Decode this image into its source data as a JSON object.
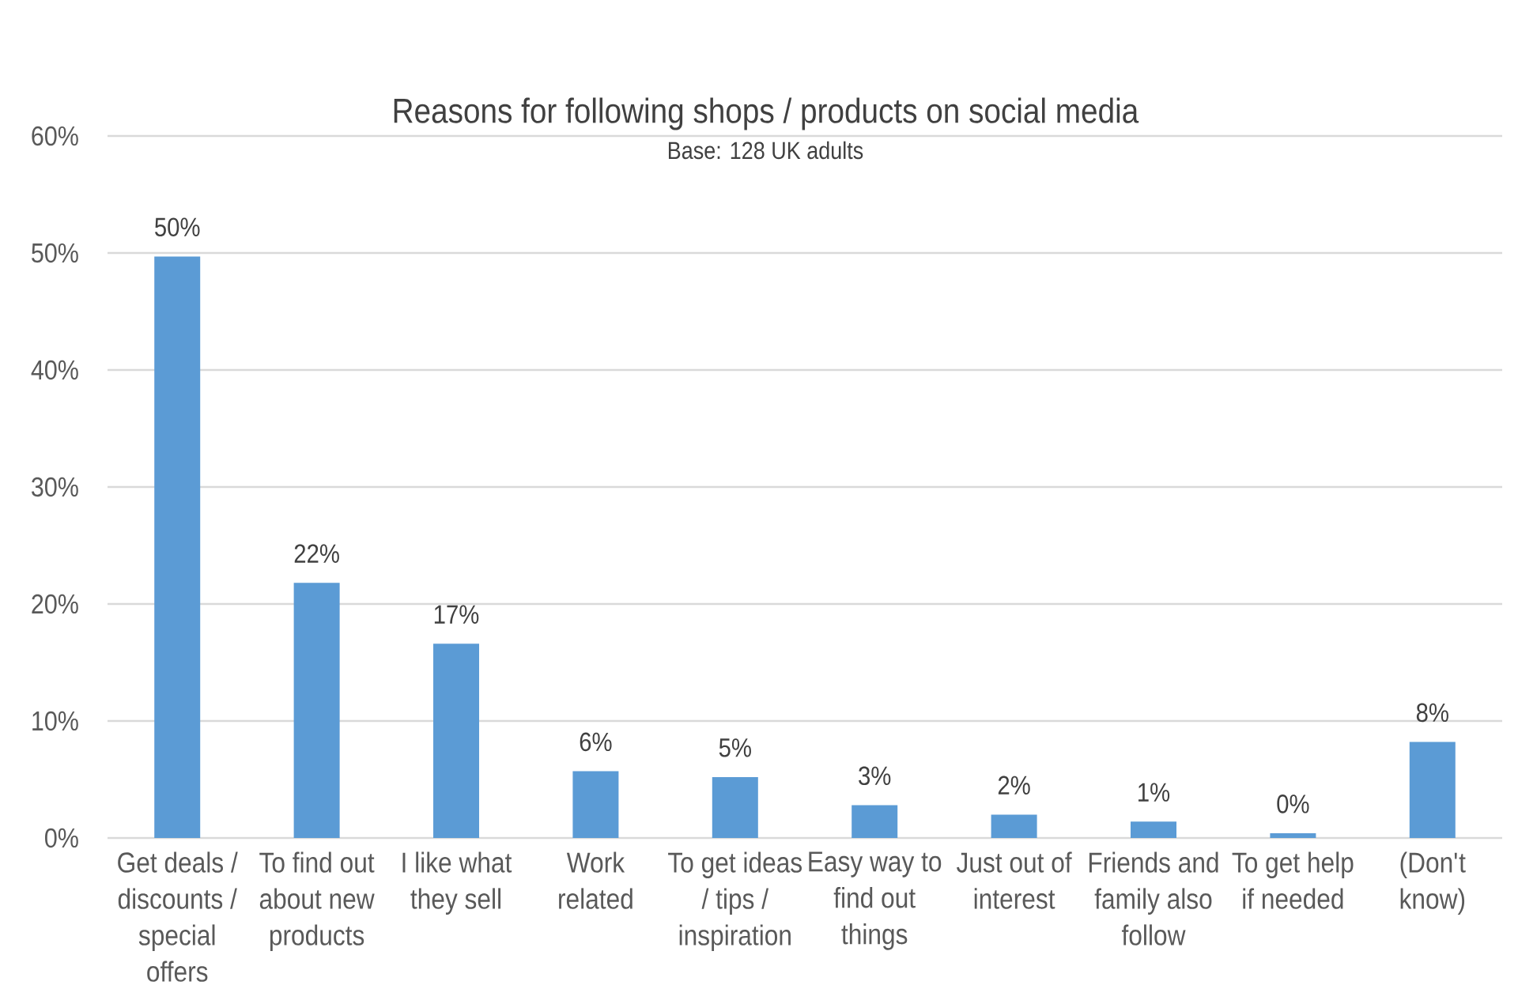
{
  "chart_data": {
    "type": "bar",
    "title": "Reasons for following shops / products on social media",
    "subtitle": "Base: 128 UK adults",
    "categories": [
      "Get deals / discounts / special offers",
      "To find out about new products",
      "I like what they sell",
      "Work related",
      "To get ideas / tips / inspiration",
      "Easy way to find out things",
      "Just out of interest",
      "Friends and family also follow",
      "To get help if needed",
      "(Don't know)"
    ],
    "values": [
      49.7,
      21.8,
      16.6,
      5.7,
      5.2,
      2.8,
      2.0,
      1.4,
      0.4,
      8.2
    ],
    "value_labels": [
      "50%",
      "22%",
      "17%",
      "6%",
      "5%",
      "3%",
      "2%",
      "1%",
      "0%",
      "8%"
    ],
    "color": "#5b9bd5",
    "ylim": [
      0,
      60
    ],
    "yticks": [
      {
        "value": 0,
        "label": "0%"
      },
      {
        "value": 10,
        "label": "10%"
      },
      {
        "value": 20,
        "label": "20%"
      },
      {
        "value": 30,
        "label": "30%"
      },
      {
        "value": 40,
        "label": "40%"
      },
      {
        "value": 50,
        "label": "50%"
      },
      {
        "value": 60,
        "label": "60%"
      }
    ],
    "grid": "y"
  }
}
